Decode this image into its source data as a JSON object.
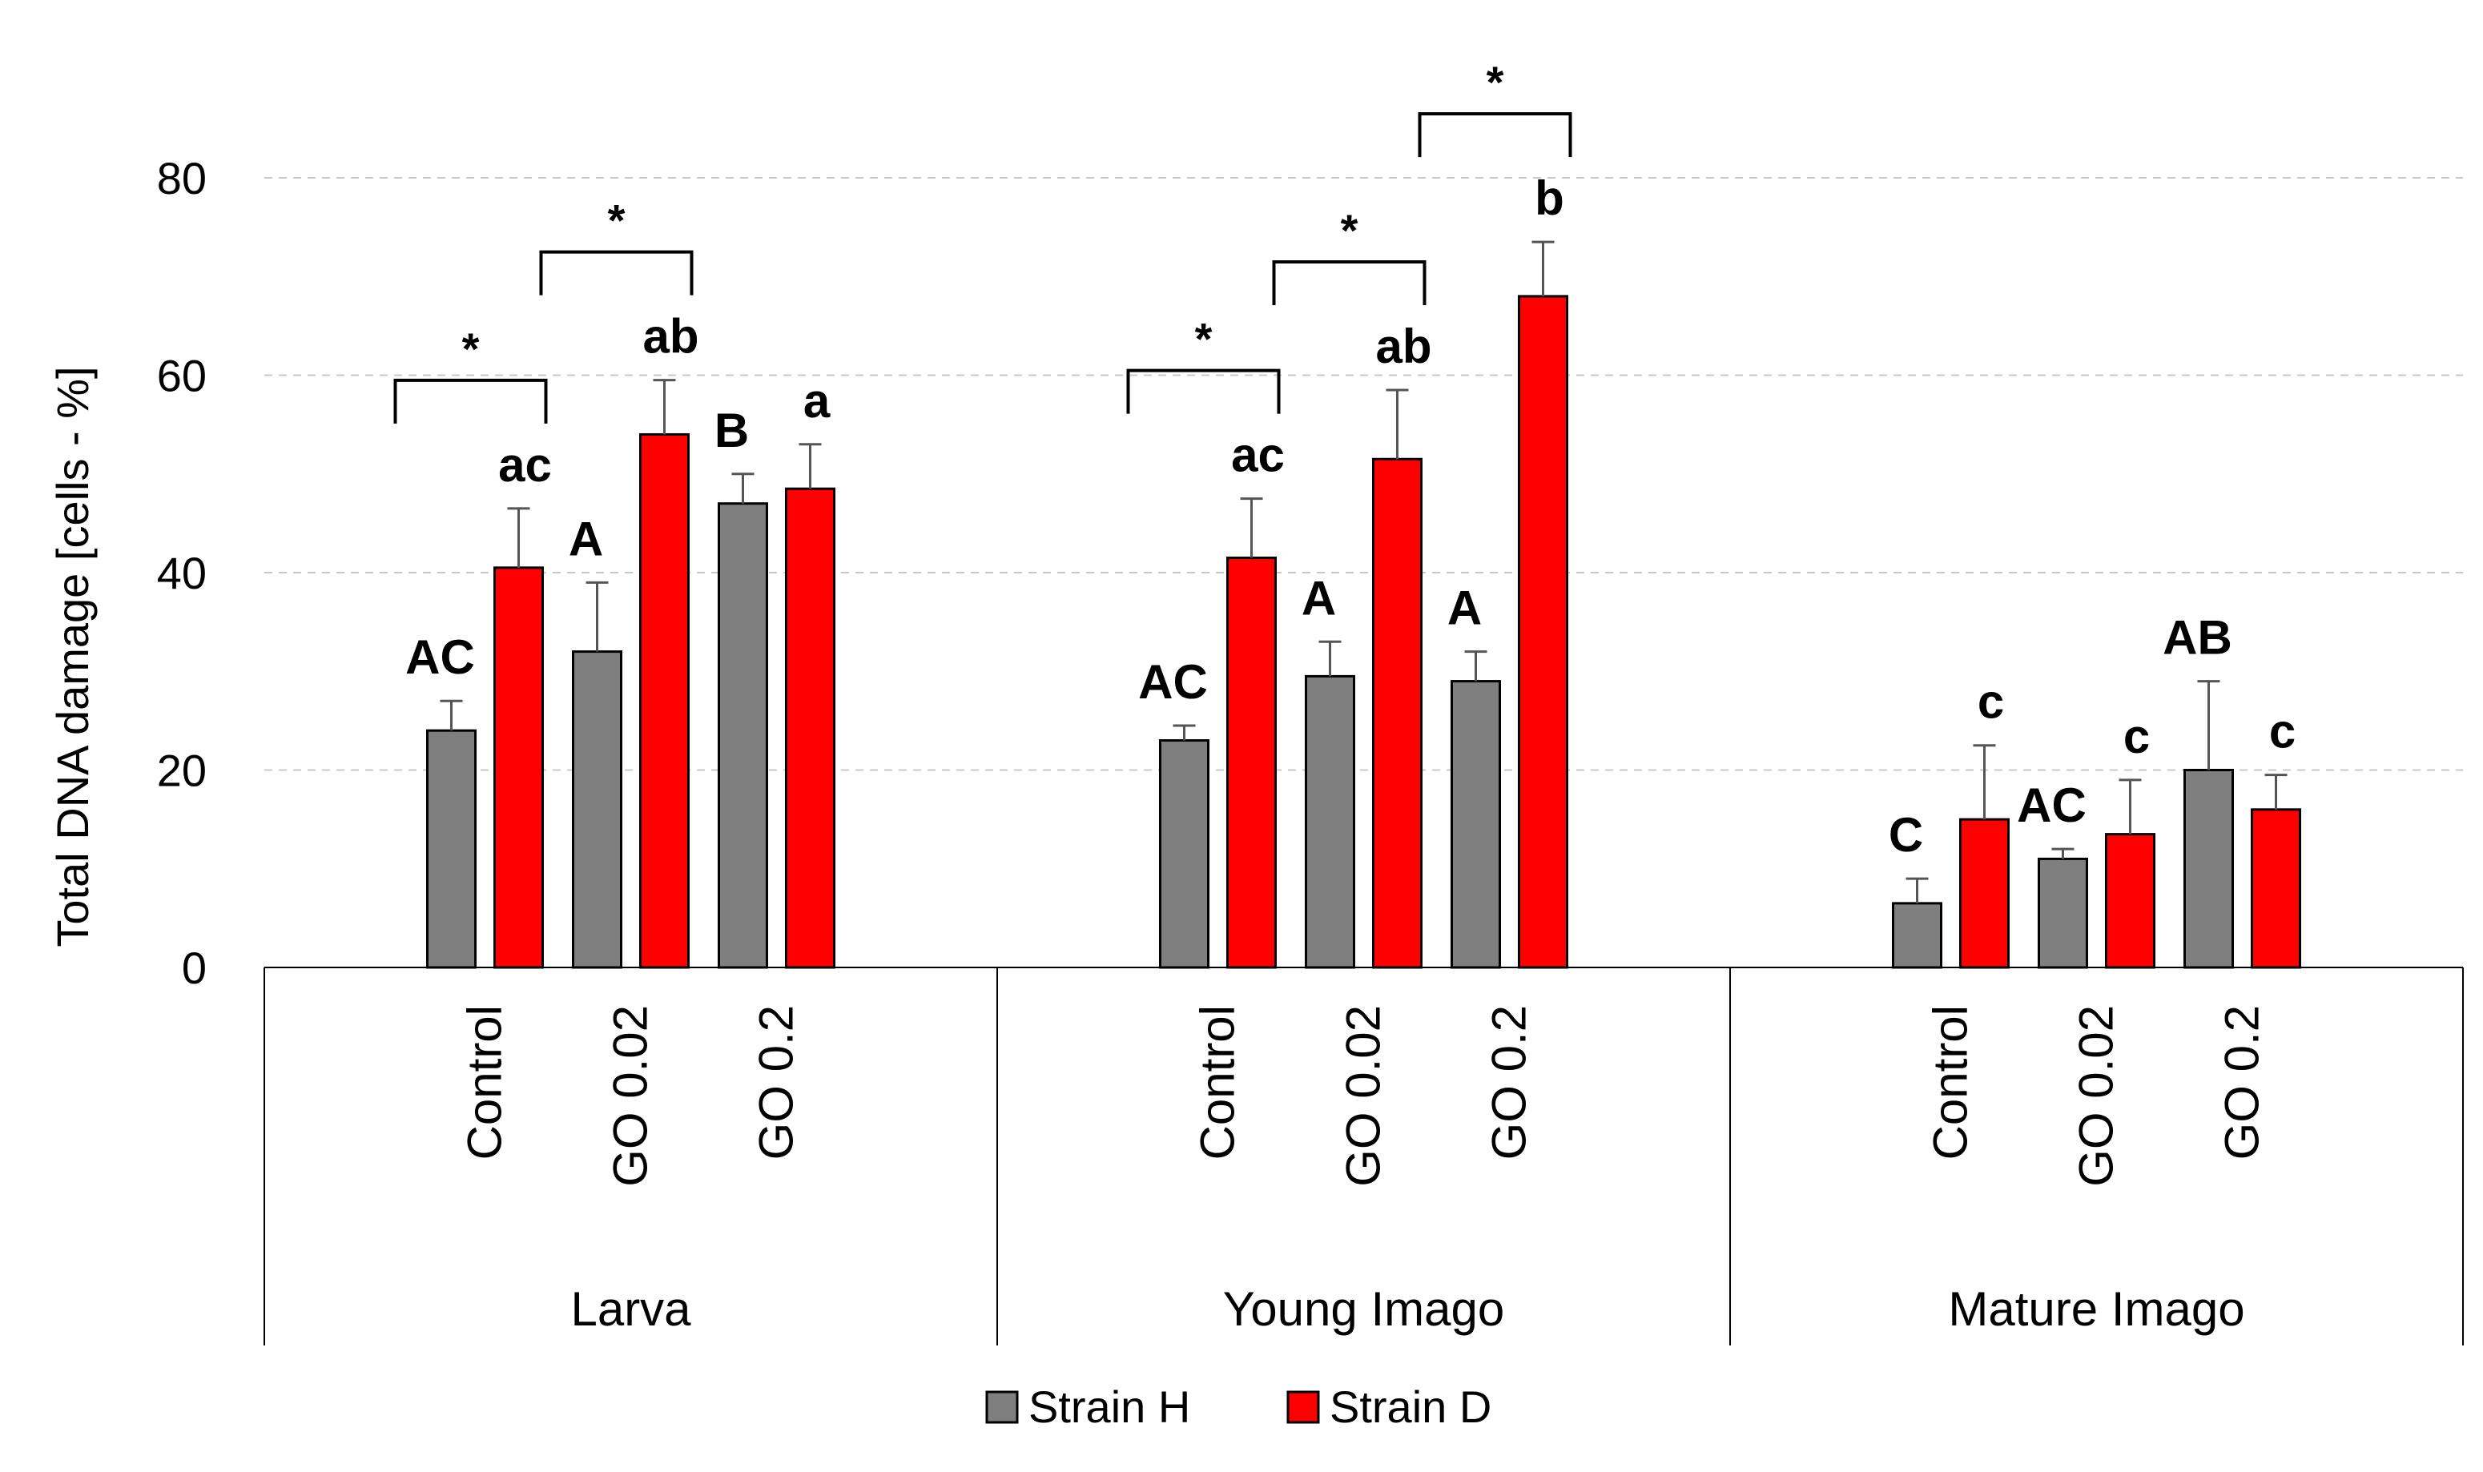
{
  "chart_data": {
    "type": "bar",
    "title": "",
    "ylabel": "Total DNA damage   [cells - %]",
    "xlabel": "",
    "ylim": [
      0,
      80
    ],
    "yticks": [
      0,
      20,
      40,
      60,
      80
    ],
    "gridlines": true,
    "legend_position": "bottom-center",
    "groups": [
      {
        "name": "Larva",
        "categories": [
          "Control",
          "GO 0.02",
          "GO 0.2"
        ],
        "series": [
          {
            "name": "Strain H",
            "color": "#7f7f7f",
            "values": [
              24,
              32,
              47
            ],
            "errors": [
              3,
              7,
              3
            ],
            "labels": [
              "AC",
              "A",
              "B"
            ]
          },
          {
            "name": "Strain D",
            "color": "#ff0000",
            "values": [
              40.5,
              54,
              48.5
            ],
            "errors": [
              6,
              5.5,
              4.5
            ],
            "labels": [
              "ac",
              "ab",
              "a"
            ]
          }
        ],
        "significance": [
          "*",
          "*",
          ""
        ]
      },
      {
        "name": "Young Imago",
        "categories": [
          "Control",
          "GO 0.02",
          "GO 0.2"
        ],
        "series": [
          {
            "name": "Strain H",
            "color": "#7f7f7f",
            "values": [
              23,
              29.5,
              29
            ],
            "errors": [
              1.5,
              3.5,
              3
            ],
            "labels": [
              "AC",
              "A",
              "A"
            ]
          },
          {
            "name": "Strain D",
            "color": "#ff0000",
            "values": [
              41.5,
              51.5,
              68
            ],
            "errors": [
              6,
              7,
              5.5
            ],
            "labels": [
              "ac",
              "ab",
              "b"
            ]
          }
        ],
        "significance": [
          "*",
          "*",
          "*"
        ]
      },
      {
        "name": "Mature Imago",
        "categories": [
          "Control",
          "GO 0.02",
          "GO 0.2"
        ],
        "series": [
          {
            "name": "Strain H",
            "color": "#7f7f7f",
            "values": [
              6.5,
              11,
              20
            ],
            "errors": [
              2.5,
              1,
              9
            ],
            "labels": [
              "C",
              "AC",
              "AB"
            ]
          },
          {
            "name": "Strain D",
            "color": "#ff0000",
            "values": [
              15,
              13.5,
              16
            ],
            "errors": [
              7.5,
              5.5,
              3.5
            ],
            "labels": [
              "c",
              "c",
              "c"
            ]
          }
        ],
        "significance": [
          "",
          "",
          ""
        ]
      }
    ],
    "legend": [
      {
        "name": "Strain H",
        "color": "#7f7f7f"
      },
      {
        "name": "Strain D",
        "color": "#ff0000"
      }
    ]
  }
}
